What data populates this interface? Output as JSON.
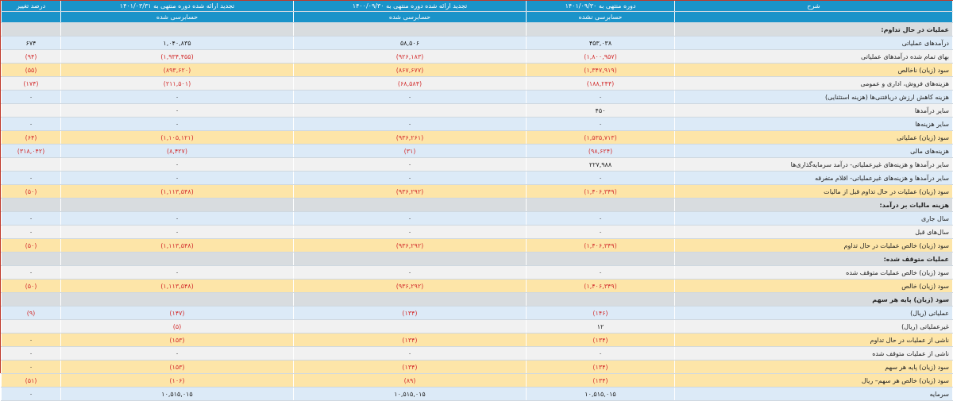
{
  "header": {
    "change_percent": "درصد تغییر",
    "col_restated_1401": "تجدید ارائه شده دوره منتهی به ۱۴۰۱/۰۳/۳۱",
    "col_restated_1400": "تجدید ارائه شده دوره منتهی به ۱۴۰۰/۰۹/۳۰",
    "col_current": "دوره منتهی به ۱۴۰۱/۰۹/۳۰",
    "description": "شرح",
    "audit_restated_1401": "حسابرسی شده",
    "audit_restated_1400": "حسابرسی شده",
    "audit_current": "حسابرسی نشده"
  },
  "colors": {
    "header_bg": "#1a93c9",
    "section_bg": "#d8dcdf",
    "row_blue": "#dceaf7",
    "row_gray": "#f1f1f1",
    "row_gold": "#fde5a8",
    "negative_text": "#d32f2f"
  },
  "rows": [
    {
      "style": "section",
      "desc": "عملیات در حال تداوم:",
      "v1": "",
      "v2": "",
      "v3": "",
      "pct": ""
    },
    {
      "style": "blue",
      "desc": "درآمدهای عملیاتی",
      "v1": "۴۵۳,۰۳۸",
      "v2": "۵۸,۵۰۶",
      "v3": "۱,۰۴۰,۸۳۵",
      "pct": "۶۷۴"
    },
    {
      "style": "gray",
      "desc": "بهای تمام شده درآمدهای عملیاتی",
      "v1": "(۱,۸۰۰,۹۵۷)",
      "v2": "(۹۲۶,۱۸۳)",
      "v3": "(۱,۹۳۴,۴۵۵)",
      "pct": "(۹۴)"
    },
    {
      "style": "gold",
      "desc": "سود (زیان) ناخالص",
      "v1": "(۱,۳۴۷,۹۱۹)",
      "v2": "(۸۶۷,۶۷۷)",
      "v3": "(۸۹۳,۶۲۰)",
      "pct": "(۵۵)"
    },
    {
      "style": "gray",
      "desc": "هزینه‌های فروش، اداری و عمومی",
      "v1": "(۱۸۸,۲۴۴)",
      "v2": "(۶۸,۵۸۴)",
      "v3": "(۲۱۱,۵۰۱)",
      "pct": "(۱۷۴)"
    },
    {
      "style": "blue",
      "desc": "هزینه کاهش ارزش دریافتنی‌ها (هزینه استثنایی)",
      "v1": "۰",
      "v2": "۰",
      "v3": "۰",
      "pct": "۰"
    },
    {
      "style": "gray",
      "desc": "سایر درآمدها",
      "v1": "۴۵۰",
      "v2": "",
      "v3": "۰",
      "pct": ""
    },
    {
      "style": "blue",
      "desc": "سایر هزینه‌ها",
      "v1": "۰",
      "v2": "۰",
      "v3": "۰",
      "pct": "۰"
    },
    {
      "style": "gold",
      "desc": "سود (زیان) عملیاتی",
      "v1": "(۱,۵۳۵,۷۱۳)",
      "v2": "(۹۳۶,۲۶۱)",
      "v3": "(۱,۱۰۵,۱۲۱)",
      "pct": "(۶۴)"
    },
    {
      "style": "blue",
      "desc": "هزینه‌های مالی",
      "v1": "(۹۸,۶۲۴)",
      "v2": "(۳۱)",
      "v3": "(۸,۴۲۷)",
      "pct": "(۳۱۸,۰۴۲)"
    },
    {
      "style": "gray",
      "desc": "سایر درآمدها و هزینه‌های غیرعملیاتی- درآمد سرمایه‌گذاری‌ها",
      "v1": "۲۲۷,۹۸۸",
      "v2": "۰",
      "v3": "۰",
      "pct": ""
    },
    {
      "style": "blue",
      "desc": "سایر درآمدها و هزینه‌های غیرعملیاتی- اقلام متفرقه",
      "v1": "۰",
      "v2": "۰",
      "v3": "۰",
      "pct": "۰"
    },
    {
      "style": "gold",
      "desc": "سود (زیان) عملیات در حال تداوم قبل از مالیات",
      "v1": "(۱,۴۰۶,۳۴۹)",
      "v2": "(۹۳۶,۲۹۲)",
      "v3": "(۱,۱۱۳,۵۴۸)",
      "pct": "(۵۰)"
    },
    {
      "style": "section",
      "desc": "هزینه مالیات بر درآمد:",
      "v1": "",
      "v2": "",
      "v3": "",
      "pct": ""
    },
    {
      "style": "blue",
      "desc": "سال جاری",
      "v1": "۰",
      "v2": "۰",
      "v3": "۰",
      "pct": "۰"
    },
    {
      "style": "gray",
      "desc": "سال‌های قبل",
      "v1": "۰",
      "v2": "۰",
      "v3": "۰",
      "pct": "۰"
    },
    {
      "style": "gold",
      "desc": "سود (زیان) خالص عملیات در حال تداوم",
      "v1": "(۱,۴۰۶,۳۴۹)",
      "v2": "(۹۳۶,۲۹۲)",
      "v3": "(۱,۱۱۳,۵۴۸)",
      "pct": "(۵۰)"
    },
    {
      "style": "section",
      "desc": "عملیات متوقف شده:",
      "v1": "",
      "v2": "",
      "v3": "",
      "pct": ""
    },
    {
      "style": "gray",
      "desc": "سود (زیان) خالص عملیات متوقف شده",
      "v1": "۰",
      "v2": "۰",
      "v3": "۰",
      "pct": "۰"
    },
    {
      "style": "gold",
      "desc": "سود (زیان) خالص",
      "v1": "(۱,۴۰۶,۳۴۹)",
      "v2": "(۹۳۶,۲۹۲)",
      "v3": "(۱,۱۱۳,۵۴۸)",
      "pct": "(۵۰)"
    },
    {
      "style": "section",
      "desc": "سود (زیان) پایه هر سهم",
      "v1": "",
      "v2": "",
      "v3": "",
      "pct": ""
    },
    {
      "style": "blue",
      "desc": "عملیاتی (ریال)",
      "v1": "(۱۴۶)",
      "v2": "(۱۳۴)",
      "v3": "(۱۴۷)",
      "pct": "(۹)"
    },
    {
      "style": "gray",
      "desc": "غیرعملیاتی (ریال)",
      "v1": "۱۲",
      "v2": "",
      "v3": "(۵)",
      "pct": ""
    },
    {
      "style": "gold",
      "desc": "ناشی از عملیات در حال تداوم",
      "v1": "(۱۳۴)",
      "v2": "(۱۳۴)",
      "v3": "(۱۵۳)",
      "pct": "۰"
    },
    {
      "style": "gray",
      "desc": "ناشی از عملیات متوقف شده",
      "v1": "۰",
      "v2": "۰",
      "v3": "۰",
      "pct": "۰"
    },
    {
      "style": "gold",
      "desc": "سود (زیان) پایه هر سهم",
      "v1": "(۱۳۴)",
      "v2": "(۱۳۴)",
      "v3": "(۱۵۳)",
      "pct": "۰"
    },
    {
      "style": "gold",
      "desc": "سود (زیان) خالص هر سهم– ریال",
      "v1": "(۱۳۴)",
      "v2": "(۸۹)",
      "v3": "(۱۰۶)",
      "pct": "(۵۱)"
    },
    {
      "style": "blue",
      "desc": "سرمایه",
      "v1": "۱۰,۵۱۵,۰۱۵",
      "v2": "۱۰,۵۱۵,۰۱۵",
      "v3": "۱۰,۵۱۵,۰۱۵",
      "pct": "۰"
    }
  ]
}
